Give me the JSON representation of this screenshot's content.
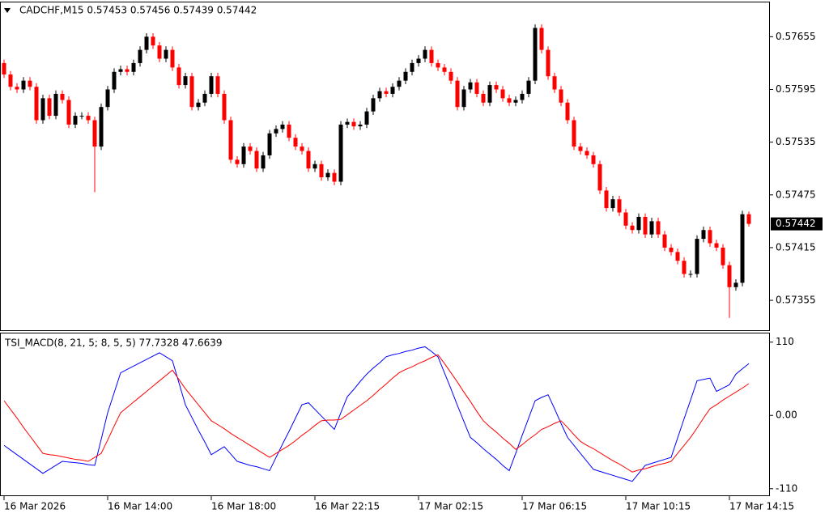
{
  "chart_data": [
    {
      "type": "candlestick",
      "title": "CADCHF,M15  0.57453 0.57456 0.57439 0.57442",
      "categories": [
        "16 Mar 2026",
        null,
        null,
        null,
        null,
        null,
        null,
        null,
        null,
        null,
        null,
        null,
        null,
        null,
        null,
        null,
        "16 Mar 14:00",
        null,
        null,
        null,
        null,
        null,
        null,
        null,
        null,
        null,
        null,
        null,
        null,
        null,
        null,
        null,
        "16 Mar 18:00",
        null,
        null,
        null,
        null,
        null,
        null,
        null,
        null,
        null,
        null,
        null,
        null,
        null,
        null,
        null,
        "16 Mar 22:15",
        null,
        null,
        null,
        null,
        null,
        null,
        null,
        null,
        null,
        null,
        null,
        null,
        null,
        null,
        null,
        "17 Mar 02:15",
        null,
        null,
        null,
        null,
        null,
        null,
        null,
        null,
        null,
        null,
        null,
        null,
        null,
        null,
        null,
        "17 Mar 06:15",
        null,
        null,
        null,
        null,
        null,
        null,
        null,
        null,
        null,
        null,
        null,
        null,
        null,
        null,
        null,
        "17 Mar 10:15",
        null,
        null,
        null,
        null,
        null,
        null,
        null,
        null,
        null,
        null,
        null,
        null,
        null,
        null,
        null,
        "17 Mar 14:15",
        null,
        null,
        null
      ],
      "open": [
        0.57625,
        0.57612,
        0.57598,
        0.57595,
        0.57605,
        0.57598,
        0.5756,
        0.57585,
        0.57565,
        0.5759,
        0.57583,
        0.57555,
        0.57565,
        0.57565,
        0.5756,
        0.5753,
        0.57575,
        0.57595,
        0.57615,
        0.57618,
        0.57615,
        0.57625,
        0.5764,
        0.57655,
        0.57645,
        0.5763,
        0.5764,
        0.5762,
        0.576,
        0.5761,
        0.57575,
        0.5758,
        0.5759,
        0.5761,
        0.5759,
        0.5756,
        0.57515,
        0.5751,
        0.5753,
        0.57525,
        0.57505,
        0.5752,
        0.57545,
        0.5755,
        0.57555,
        0.5754,
        0.5753,
        0.57525,
        0.57505,
        0.5751,
        0.57495,
        0.575,
        0.5749,
        0.57555,
        0.57558,
        0.57553,
        0.57555,
        0.5757,
        0.57585,
        0.57593,
        0.5759,
        0.57598,
        0.57605,
        0.57615,
        0.57625,
        0.5763,
        0.5764,
        0.57625,
        0.5762,
        0.57615,
        0.57605,
        0.57575,
        0.57595,
        0.57603,
        0.5759,
        0.5758,
        0.576,
        0.57595,
        0.57585,
        0.5758,
        0.57583,
        0.5759,
        0.57605,
        0.57665,
        0.5764,
        0.5761,
        0.57595,
        0.5758,
        0.5756,
        0.5753,
        0.57525,
        0.5752,
        0.5751,
        0.5748,
        0.5746,
        0.5747,
        0.57455,
        0.5744,
        0.57435,
        0.5745,
        0.5743,
        0.57445,
        0.5743,
        0.57415,
        0.5741,
        0.574,
        0.57385,
        0.57385,
        0.57425,
        0.57435,
        0.5742,
        0.57415,
        0.57395,
        0.5737,
        0.57375,
        0.57453
      ],
      "high": [
        0.57629,
        0.57616,
        0.57602,
        0.57609,
        0.57609,
        0.57602,
        0.57589,
        0.57589,
        0.57594,
        0.57594,
        0.57587,
        0.57569,
        0.57569,
        0.57569,
        0.57564,
        0.57579,
        0.57599,
        0.57619,
        0.57622,
        0.57622,
        0.57629,
        0.57644,
        0.57659,
        0.57659,
        0.57649,
        0.57644,
        0.57644,
        0.57624,
        0.57614,
        0.57614,
        0.57584,
        0.57594,
        0.57614,
        0.57614,
        0.57594,
        0.57564,
        0.57519,
        0.57534,
        0.57534,
        0.57529,
        0.57524,
        0.57549,
        0.57554,
        0.57559,
        0.57559,
        0.57544,
        0.57534,
        0.57529,
        0.57514,
        0.57514,
        0.57504,
        0.57504,
        0.57559,
        0.57562,
        0.57562,
        0.57559,
        0.57574,
        0.57589,
        0.57597,
        0.57597,
        0.57602,
        0.57609,
        0.57619,
        0.57629,
        0.57634,
        0.57644,
        0.57644,
        0.57629,
        0.57624,
        0.57619,
        0.57609,
        0.57599,
        0.57607,
        0.57607,
        0.57594,
        0.57604,
        0.57604,
        0.57599,
        0.57589,
        0.57587,
        0.57594,
        0.57609,
        0.57669,
        0.57669,
        0.57644,
        0.57614,
        0.57599,
        0.57584,
        0.57564,
        0.57534,
        0.57529,
        0.57524,
        0.57514,
        0.57484,
        0.57474,
        0.57474,
        0.57459,
        0.57444,
        0.57454,
        0.57454,
        0.57449,
        0.57449,
        0.57434,
        0.57419,
        0.57414,
        0.57404,
        0.57389,
        0.57429,
        0.57439,
        0.57439,
        0.57424,
        0.57419,
        0.57399,
        0.57379,
        0.57457,
        0.57456
      ],
      "low": [
        0.57608,
        0.57594,
        0.57591,
        0.57591,
        0.57594,
        0.57556,
        0.57556,
        0.57561,
        0.57561,
        0.57579,
        0.57551,
        0.57551,
        0.57561,
        0.57556,
        0.57478,
        0.57526,
        0.57571,
        0.57591,
        0.57611,
        0.57611,
        0.57611,
        0.57621,
        0.57636,
        0.57641,
        0.57626,
        0.57626,
        0.57616,
        0.57596,
        0.57596,
        0.57571,
        0.57571,
        0.57576,
        0.57586,
        0.57586,
        0.57556,
        0.57511,
        0.57506,
        0.57506,
        0.57521,
        0.57501,
        0.57501,
        0.57516,
        0.57541,
        0.57546,
        0.57536,
        0.57526,
        0.57521,
        0.57501,
        0.57501,
        0.57491,
        0.57491,
        0.57486,
        0.57486,
        0.57551,
        0.57549,
        0.57549,
        0.57551,
        0.57566,
        0.57581,
        0.57586,
        0.57586,
        0.57594,
        0.57601,
        0.57611,
        0.57621,
        0.57626,
        0.57621,
        0.57616,
        0.57611,
        0.57601,
        0.57571,
        0.57571,
        0.57591,
        0.57586,
        0.57576,
        0.57576,
        0.57591,
        0.57581,
        0.57576,
        0.57576,
        0.57579,
        0.57586,
        0.57601,
        0.57636,
        0.57606,
        0.57591,
        0.57576,
        0.57556,
        0.57526,
        0.57521,
        0.57516,
        0.57506,
        0.57476,
        0.57456,
        0.57456,
        0.57451,
        0.57436,
        0.57431,
        0.57431,
        0.57426,
        0.57426,
        0.57426,
        0.57411,
        0.57406,
        0.57396,
        0.57381,
        0.57381,
        0.57381,
        0.57421,
        0.57416,
        0.57411,
        0.57391,
        0.57335,
        0.57366,
        0.57371,
        0.57439
      ],
      "close": [
        0.57612,
        0.57598,
        0.57595,
        0.57605,
        0.57598,
        0.5756,
        0.57585,
        0.57565,
        0.5759,
        0.57583,
        0.57555,
        0.57565,
        0.57565,
        0.5756,
        0.5753,
        0.57575,
        0.57595,
        0.57615,
        0.57618,
        0.57615,
        0.57625,
        0.5764,
        0.57655,
        0.57645,
        0.5763,
        0.5764,
        0.5762,
        0.576,
        0.5761,
        0.57575,
        0.5758,
        0.5759,
        0.5761,
        0.5759,
        0.5756,
        0.57515,
        0.5751,
        0.5753,
        0.57525,
        0.57505,
        0.5752,
        0.57545,
        0.5755,
        0.57555,
        0.5754,
        0.5753,
        0.57525,
        0.57505,
        0.5751,
        0.57495,
        0.575,
        0.5749,
        0.57555,
        0.57558,
        0.57553,
        0.57555,
        0.5757,
        0.57585,
        0.57593,
        0.5759,
        0.57598,
        0.57605,
        0.57615,
        0.57625,
        0.5763,
        0.5764,
        0.57625,
        0.5762,
        0.57615,
        0.57605,
        0.57575,
        0.57595,
        0.57603,
        0.5759,
        0.5758,
        0.576,
        0.57595,
        0.57585,
        0.5758,
        0.57583,
        0.5759,
        0.57605,
        0.57665,
        0.5764,
        0.5761,
        0.57595,
        0.5758,
        0.5756,
        0.5753,
        0.57525,
        0.5752,
        0.5751,
        0.5748,
        0.5746,
        0.5747,
        0.57455,
        0.5744,
        0.57435,
        0.5745,
        0.5743,
        0.57445,
        0.5743,
        0.57415,
        0.5741,
        0.574,
        0.57385,
        0.57385,
        0.57425,
        0.57435,
        0.5742,
        0.57415,
        0.57395,
        0.5737,
        0.57375,
        0.57453,
        0.57442
      ],
      "up_color": "#000000",
      "down_color": "#ff0000",
      "ylim": [
        0.57321,
        0.57694
      ],
      "yticks": [
        0.57355,
        0.57415,
        0.57475,
        0.57535,
        0.57595,
        0.57655
      ],
      "last_price": 0.57442
    },
    {
      "type": "line",
      "title": "TSI_MACD(8, 21, 5; 8, 5, 5) 77.7328 47.6639",
      "series": [
        {
          "color": "#0000ff",
          "values": [
            -45,
            -52,
            -59,
            -66,
            -73,
            -80,
            -87,
            -81,
            -75,
            -69,
            -70,
            -71,
            -72,
            -74,
            -75,
            -36,
            4,
            34,
            64,
            69,
            74,
            79,
            84,
            89,
            94,
            88,
            82,
            49,
            16,
            -3,
            -22,
            -40,
            -59,
            -53,
            -47,
            -58,
            -69,
            -72,
            -75,
            -77,
            -80,
            -83,
            -63,
            -43,
            -24,
            -4,
            16,
            19,
            9,
            -1,
            -11,
            -21,
            4,
            28,
            39,
            51,
            62,
            71,
            79,
            88,
            91,
            93,
            96,
            98,
            101,
            103,
            96,
            88,
            64,
            40,
            15,
            -9,
            -33,
            -41,
            -50,
            -58,
            -66,
            -75,
            -83,
            -57,
            -30,
            -4,
            22,
            27,
            31,
            10,
            -12,
            -33,
            -45,
            -57,
            -69,
            -81,
            -84,
            -87,
            -90,
            -93,
            -96,
            -99,
            -87,
            -75,
            -72,
            -69,
            -66,
            -63,
            -34,
            -5,
            23,
            52,
            54,
            56,
            36,
            41,
            46,
            62,
            70,
            77.7
          ]
        },
        {
          "color": "#ff0000",
          "values": [
            22,
            9,
            -4,
            -18,
            -31,
            -44,
            -57,
            -59,
            -60,
            -62,
            -64,
            -66,
            -67,
            -69,
            -63,
            -57,
            -37,
            -16,
            4,
            12,
            20,
            28,
            36,
            44,
            52,
            60,
            68,
            54,
            40,
            28,
            16,
            4,
            -8,
            -14,
            -20,
            -27,
            -33,
            -39,
            -45,
            -51,
            -57,
            -63,
            -57,
            -51,
            -45,
            -38,
            -30,
            -23,
            -15,
            -8,
            -7,
            -7,
            -6,
            1,
            8,
            15,
            22,
            30,
            39,
            47,
            56,
            64,
            69,
            73,
            78,
            82,
            87,
            91,
            78,
            64,
            50,
            35,
            21,
            6,
            -8,
            -17,
            -25,
            -34,
            -42,
            -51,
            -44,
            -36,
            -29,
            -21,
            -17,
            -12,
            -8,
            -18,
            -29,
            -39,
            -45,
            -50,
            -56,
            -62,
            -68,
            -73,
            -79,
            -85,
            -82,
            -80,
            -77,
            -74,
            -72,
            -69,
            -57,
            -45,
            -33,
            -19,
            -4,
            10,
            16,
            23,
            29,
            35,
            41,
            47.7
          ]
        }
      ],
      "ylim": [
        -120,
        123
      ],
      "yticks": [
        110,
        {
          "value": 0,
          "label": "0.00"
        },
        -110
      ]
    }
  ]
}
